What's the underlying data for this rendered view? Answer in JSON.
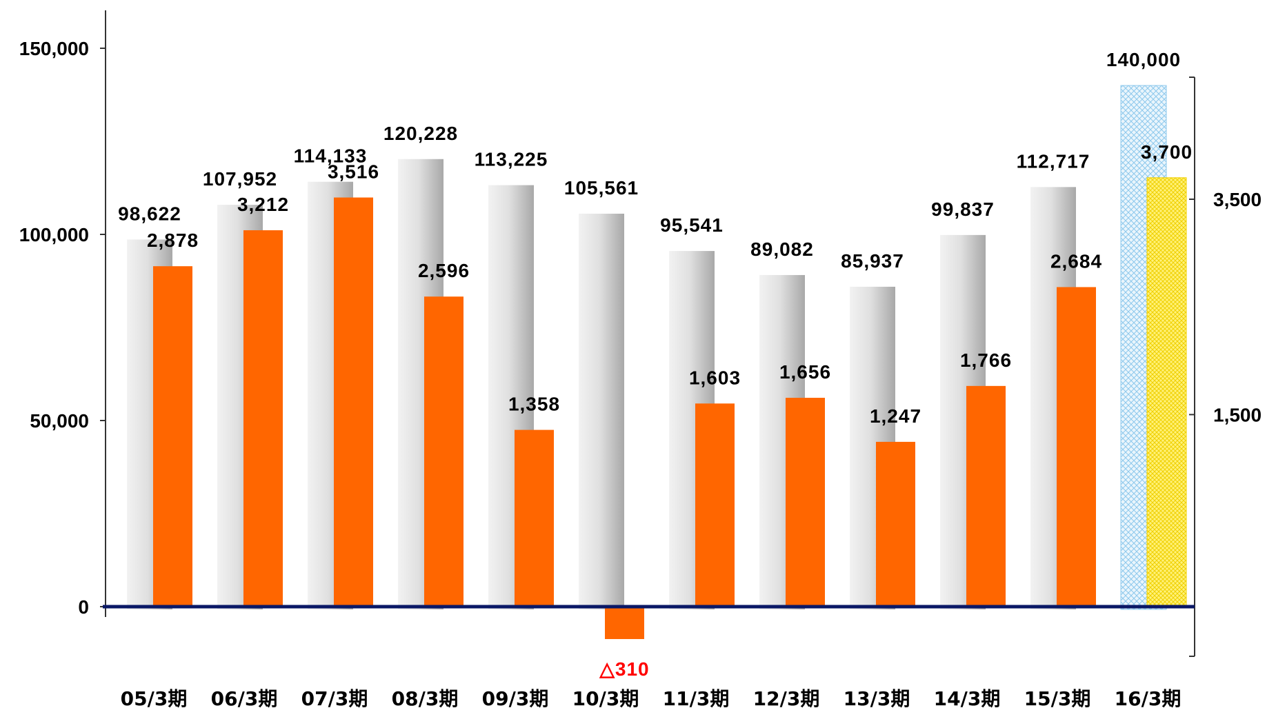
{
  "chart_data": {
    "type": "bar",
    "categories": [
      "05/3期",
      "06/3期",
      "07/3期",
      "08/3期",
      "09/3期",
      "10/3期",
      "11/3期",
      "12/3期",
      "13/3期",
      "14/3期",
      "15/3期",
      "16/3期"
    ],
    "series": [
      {
        "axis": "left",
        "values": [
          98622,
          107952,
          114133,
          120228,
          113225,
          105561,
          95541,
          89082,
          85937,
          99837,
          112717,
          140000
        ],
        "labels": [
          "98,622",
          "107,952",
          "114,133",
          "120,228",
          "113,225",
          "105,561",
          "95,541",
          "89,082",
          "85,937",
          "99,837",
          "112,717",
          "140,000"
        ],
        "color": "#c8c8c8",
        "forecast_color": "#bfe0f5"
      },
      {
        "axis": "right",
        "values": [
          2878,
          3212,
          3516,
          2596,
          1358,
          -310,
          1603,
          1656,
          1247,
          1766,
          2684,
          3700
        ],
        "labels": [
          "2,878",
          "3,212",
          "3,516",
          "2,596",
          "1,358",
          "△310",
          "1,603",
          "1,656",
          "1,247",
          "1,766",
          "2,684",
          "3,700"
        ],
        "color": "#ff6600",
        "forecast_color": "#ffee66",
        "negative_label_color": "#ff0000"
      }
    ],
    "forecast_index": 11,
    "left_axis": {
      "ylim": [
        0,
        150000
      ],
      "ticks": [
        0,
        50000,
        100000,
        150000
      ],
      "tick_labels": [
        "0",
        "50,000",
        "100,000",
        "150,000"
      ]
    },
    "right_axis": {
      "ticks": [
        1500,
        3500
      ],
      "tick_labels": [
        "1,500",
        "3,500"
      ]
    },
    "title": "",
    "xlabel": "",
    "ylabel": "",
    "legend": "none",
    "grid": false,
    "baseline_color": "#0a1866"
  }
}
